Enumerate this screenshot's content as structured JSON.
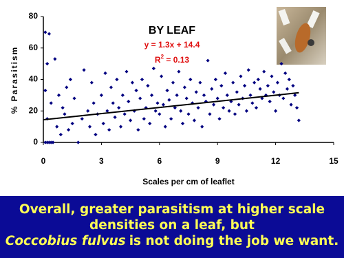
{
  "chart_data": {
    "type": "scatter",
    "title": "BY LEAF",
    "annotations": [
      "y = 1.3x + 14.4"
    ],
    "r_squared": {
      "base": "R",
      "sup": "2",
      "rest": " = 0.13"
    },
    "xlabel": "Scales per cm of leaflet",
    "ylabel": "% Parasitism",
    "xlim": [
      0,
      15
    ],
    "xticks": [
      0,
      3,
      6,
      9,
      12,
      15
    ],
    "ylim": [
      0,
      80
    ],
    "yticks": [
      0,
      20,
      40,
      60,
      80
    ],
    "color": "#000080",
    "trend_color": "#000000",
    "annotation_color": "#e01010",
    "trendline": {
      "x": [
        0,
        13.2
      ],
      "y": [
        14.4,
        31.56
      ]
    },
    "x": [
      0.1,
      0.2,
      0.3,
      0.4,
      0.5,
      0.1,
      0.2,
      0.3,
      0.1,
      0.4,
      0.2,
      0.6,
      0.7,
      0.8,
      0.9,
      1.0,
      1.1,
      1.2,
      1.3,
      1.4,
      1.5,
      1.6,
      1.8,
      2.0,
      2.1,
      2.3,
      2.4,
      2.5,
      2.6,
      2.7,
      2.8,
      3.0,
      3.1,
      3.2,
      3.3,
      3.4,
      3.5,
      3.6,
      3.7,
      3.8,
      3.9,
      4.0,
      4.1,
      4.2,
      4.3,
      4.4,
      4.5,
      4.6,
      4.7,
      4.8,
      4.9,
      5.0,
      5.1,
      5.2,
      5.3,
      5.4,
      5.5,
      5.6,
      5.7,
      5.8,
      5.9,
      6.0,
      6.1,
      6.2,
      6.3,
      6.4,
      6.5,
      6.6,
      6.7,
      6.8,
      6.9,
      7.0,
      7.1,
      7.2,
      7.3,
      7.4,
      7.5,
      7.6,
      7.7,
      7.8,
      7.9,
      8.0,
      8.1,
      8.2,
      8.3,
      8.4,
      8.5,
      8.6,
      8.7,
      8.8,
      8.9,
      9.0,
      9.1,
      9.2,
      9.3,
      9.4,
      9.5,
      9.6,
      9.7,
      9.8,
      9.9,
      10.0,
      10.1,
      10.2,
      10.3,
      10.4,
      10.5,
      10.6,
      10.7,
      10.8,
      10.9,
      11.0,
      11.1,
      11.2,
      11.3,
      11.4,
      11.5,
      11.6,
      11.7,
      11.8,
      11.9,
      12.0,
      12.1,
      12.2,
      12.3,
      12.4,
      12.5,
      12.6,
      12.7,
      12.8,
      12.9,
      13.0,
      13.1,
      13.2
    ],
    "values": [
      0,
      0,
      0,
      0,
      0,
      70,
      50,
      69,
      33,
      25,
      15,
      53,
      10,
      30,
      5,
      22,
      18,
      35,
      8,
      40,
      12,
      28,
      0,
      15,
      46,
      20,
      10,
      38,
      25,
      5,
      18,
      30,
      12,
      44,
      20,
      8,
      35,
      25,
      16,
      40,
      22,
      10,
      30,
      18,
      45,
      26,
      14,
      38,
      20,
      33,
      8,
      28,
      40,
      15,
      22,
      36,
      12,
      30,
      47,
      20,
      25,
      18,
      42,
      24,
      10,
      33,
      27,
      15,
      38,
      22,
      30,
      45,
      20,
      12,
      35,
      28,
      18,
      40,
      25,
      14,
      32,
      22,
      38,
      10,
      30,
      26,
      52,
      18,
      34,
      24,
      40,
      28,
      15,
      36,
      22,
      44,
      30,
      20,
      26,
      38,
      18,
      32,
      24,
      42,
      28,
      36,
      20,
      46,
      30,
      25,
      38,
      22,
      40,
      34,
      28,
      45,
      30,
      36,
      26,
      42,
      32,
      20,
      38,
      30,
      50,
      28,
      44,
      34,
      40,
      24,
      36,
      30,
      22,
      14
    ]
  },
  "caption": {
    "line1": "Overall, greater parasitism at higher scale",
    "line2": "densities on a leaf, but",
    "species": "Coccobius fulvus",
    "tail": "is not doing the job we want."
  }
}
